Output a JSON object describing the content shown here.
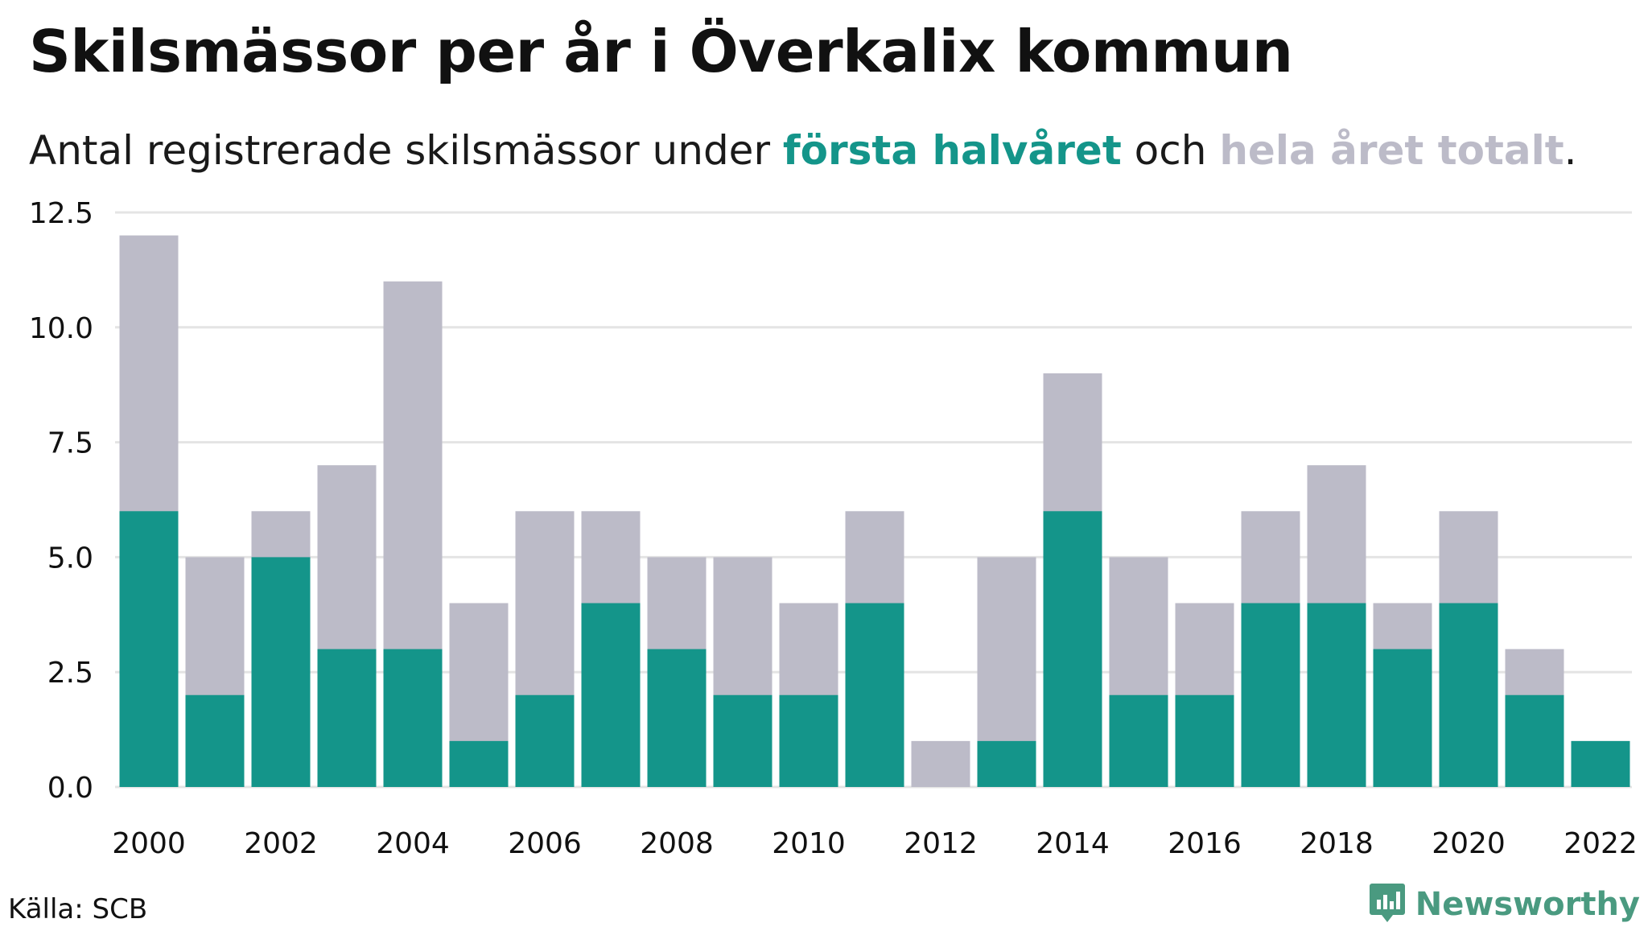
{
  "header": {
    "title": "Skilsmässor per år i Överkalix kommun",
    "subtitle_prefix": "Antal registrerade skilsmässor under ",
    "subtitle_highlight_1": "första halvåret",
    "subtitle_middle": " och ",
    "subtitle_highlight_2": "hela året totalt",
    "subtitle_suffix": "."
  },
  "footer": {
    "source": "Källa: SCB",
    "brand": "Newsworthy",
    "brand_icon": "newsworthy-logo-icon"
  },
  "colors": {
    "first_half": "#14958a",
    "full_year": "#bcbbc8",
    "grid": "#e4e4e4",
    "brand": "#4a9a80"
  },
  "chart_data": {
    "type": "bar",
    "stacking": "overlay",
    "categories": [
      "2000",
      "2001",
      "2002",
      "2003",
      "2004",
      "2005",
      "2006",
      "2007",
      "2008",
      "2009",
      "2010",
      "2011",
      "2012",
      "2013",
      "2014",
      "2015",
      "2016",
      "2017",
      "2018",
      "2019",
      "2020",
      "2021",
      "2022"
    ],
    "x_tick_labels": [
      "2000",
      "2002",
      "2004",
      "2006",
      "2008",
      "2010",
      "2012",
      "2014",
      "2016",
      "2018",
      "2020",
      "2022"
    ],
    "series": [
      {
        "key": "full_year",
        "values": [
          12,
          5,
          6,
          7,
          11,
          4,
          6,
          6,
          5,
          5,
          4,
          6,
          1,
          5,
          9,
          5,
          4,
          6,
          7,
          4,
          6,
          3,
          1
        ]
      },
      {
        "key": "first_half",
        "values": [
          6,
          2,
          5,
          3,
          3,
          1,
          2,
          4,
          3,
          2,
          2,
          4,
          0,
          1,
          6,
          2,
          2,
          4,
          4,
          3,
          4,
          2,
          1
        ]
      }
    ],
    "y_ticks": [
      "0.0",
      "2.5",
      "5.0",
      "7.5",
      "10.0",
      "12.5"
    ],
    "ylim": [
      0,
      12.5
    ],
    "grid": true,
    "legend": "in subtitle"
  }
}
